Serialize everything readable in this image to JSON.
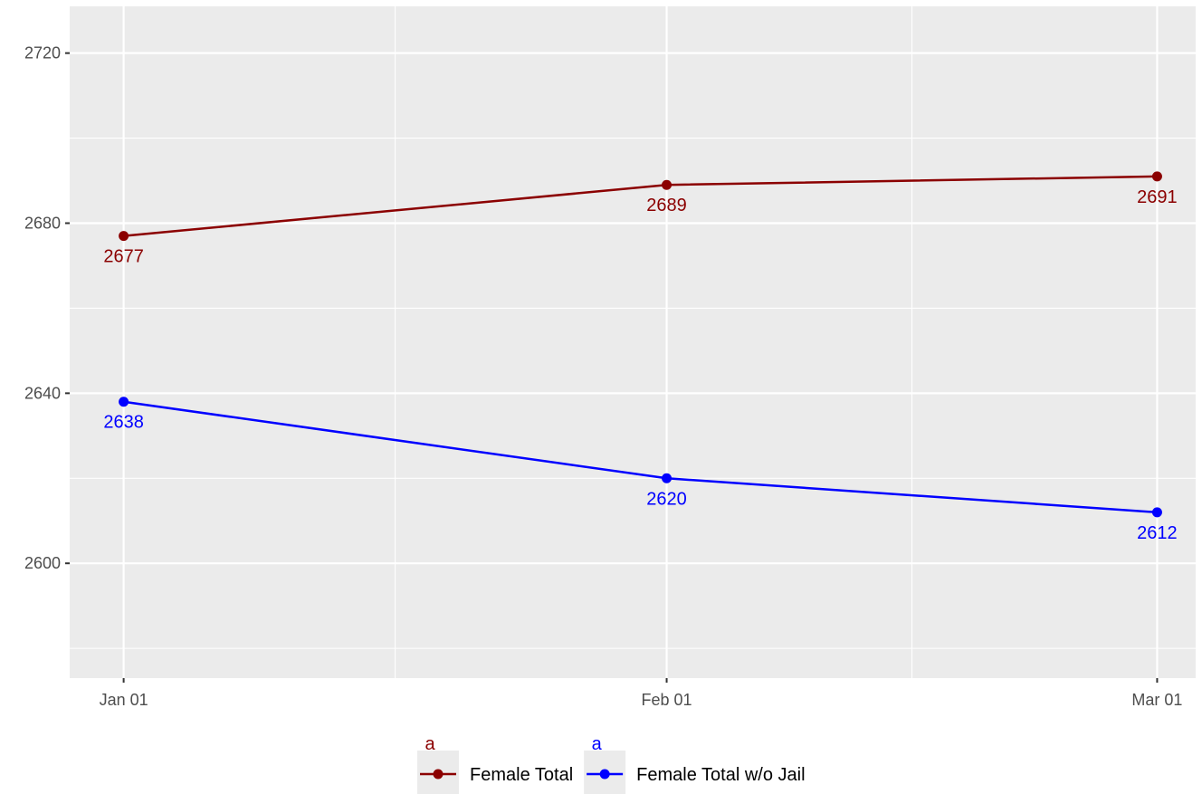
{
  "chart_data": {
    "type": "line",
    "x": [
      "Jan 01",
      "Feb 01",
      "Mar 01"
    ],
    "x_days": [
      0,
      31,
      59
    ],
    "xlim_days": [
      -3.08,
      61.2
    ],
    "ylim": [
      2573,
      2731
    ],
    "y_major_ticks": [
      2600,
      2640,
      2680,
      2720
    ],
    "y_minor_ticks": [
      2580,
      2620,
      2660,
      2700
    ],
    "y_tick_labels": [
      "2600",
      "2640",
      "2680",
      "2720"
    ],
    "x_minor_ticks_days": [
      15.5,
      45
    ],
    "grid": true,
    "legend_position": "bottom",
    "series": [
      {
        "name": "Female Total",
        "color": "#8B0000",
        "values": [
          2677,
          2689,
          2691
        ]
      },
      {
        "name": "Female Total w/o Jail",
        "color": "#0000FF",
        "values": [
          2638,
          2620,
          2612
        ]
      }
    ],
    "legend_key_glyph": "a",
    "colors": {
      "panel": "#EBEBEB",
      "grid": "#FFFFFF",
      "tick": "#333333",
      "tick_text": "#4D4D4D"
    }
  }
}
